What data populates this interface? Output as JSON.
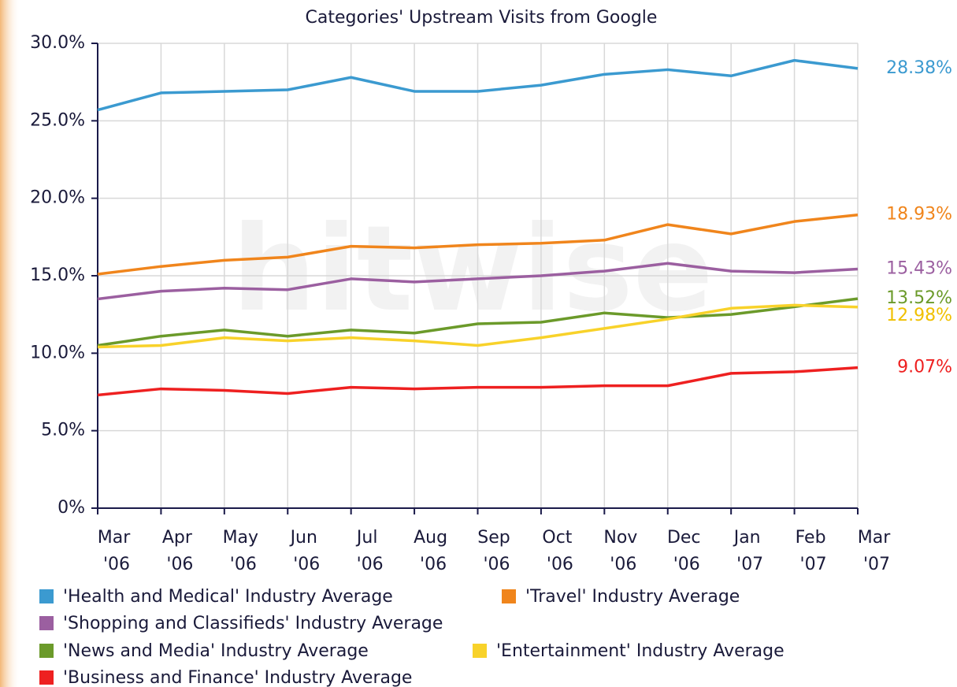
{
  "chart_data": {
    "type": "line",
    "title": "Categories' Upstream Visits from Google",
    "watermark": "hitwise",
    "categories": [
      "Mar '06",
      "Apr '06",
      "May '06",
      "Jun '06",
      "Jul '06",
      "Aug '06",
      "Sep '06",
      "Oct '06",
      "Nov '06",
      "Dec '06",
      "Jan '07",
      "Feb '07",
      "Mar '07"
    ],
    "ylim": [
      0,
      30
    ],
    "yticks": [
      {
        "value": 0,
        "label": "0%"
      },
      {
        "value": 5,
        "label": "5.0%"
      },
      {
        "value": 10,
        "label": "10.0%"
      },
      {
        "value": 15,
        "label": "15.0%"
      },
      {
        "value": 20,
        "label": "20.0%"
      },
      {
        "value": 25,
        "label": "25.0%"
      },
      {
        "value": 30,
        "label": "30.0%"
      }
    ],
    "grid": true,
    "legend": "bottom",
    "series": [
      {
        "name": "'Health and Medical' Industry Average",
        "color": "#3b9ad0",
        "values": [
          25.7,
          26.8,
          26.9,
          27.0,
          27.8,
          26.9,
          26.9,
          27.3,
          28.0,
          28.3,
          27.9,
          28.9,
          28.38
        ],
        "value_labels": [
          null,
          null,
          null,
          null,
          null,
          null,
          null,
          null,
          null,
          null,
          null,
          null,
          "28.38%"
        ]
      },
      {
        "name": "'Travel' Industry Average",
        "color": "#f0851c",
        "values": [
          15.1,
          15.6,
          16.0,
          16.2,
          16.9,
          16.8,
          17.0,
          17.1,
          17.3,
          18.3,
          17.7,
          18.5,
          18.93
        ],
        "value_labels": [
          null,
          null,
          null,
          null,
          null,
          null,
          null,
          null,
          null,
          null,
          null,
          null,
          "18.93%"
        ]
      },
      {
        "name": "'Shopping and Classifieds' Industry Average",
        "color": "#9b5fa0",
        "values": [
          13.5,
          14.0,
          14.2,
          14.1,
          14.8,
          14.6,
          14.8,
          15.0,
          15.3,
          15.8,
          15.3,
          15.2,
          15.43
        ],
        "value_labels": [
          null,
          null,
          null,
          null,
          null,
          null,
          null,
          null,
          null,
          null,
          null,
          null,
          "15.43%"
        ]
      },
      {
        "name": "'News and Media' Industry Average",
        "color": "#6b9a2a",
        "values": [
          10.5,
          11.1,
          11.5,
          11.1,
          11.5,
          11.3,
          11.9,
          12.0,
          12.6,
          12.3,
          12.5,
          13.0,
          13.52
        ],
        "value_labels": [
          null,
          null,
          null,
          null,
          null,
          null,
          null,
          null,
          null,
          null,
          null,
          null,
          "13.52%"
        ]
      },
      {
        "name": "'Entertainment' Industry Average",
        "color": "#f8d22a",
        "values": [
          10.4,
          10.5,
          11.0,
          10.8,
          11.0,
          10.8,
          10.5,
          11.0,
          11.6,
          12.2,
          12.9,
          13.1,
          12.98
        ],
        "value_labels": [
          null,
          null,
          null,
          null,
          null,
          null,
          null,
          null,
          null,
          null,
          null,
          null,
          "12.98%"
        ]
      },
      {
        "name": "'Business and Finance' Industry Average",
        "color": "#ee2020",
        "values": [
          7.3,
          7.7,
          7.6,
          7.4,
          7.8,
          7.7,
          7.8,
          7.8,
          7.9,
          7.9,
          8.7,
          8.8,
          9.07
        ],
        "value_labels": [
          null,
          null,
          null,
          null,
          null,
          null,
          null,
          null,
          null,
          null,
          null,
          null,
          "9.07%"
        ]
      }
    ]
  }
}
